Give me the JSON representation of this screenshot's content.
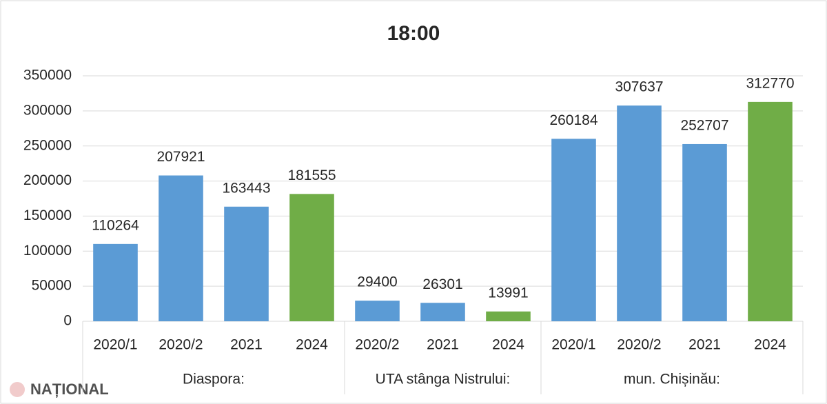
{
  "chart_data": {
    "type": "bar",
    "title": "18:00",
    "groups": [
      {
        "name": "Diaspora:",
        "categories": [
          "2020/1",
          "2020/2",
          "2021",
          "2024"
        ],
        "values": [
          110264,
          207921,
          163443,
          181555
        ],
        "colors": [
          "#5b9bd5",
          "#5b9bd5",
          "#5b9bd5",
          "#70ad47"
        ]
      },
      {
        "name": "UTA stânga Nistrului:",
        "categories": [
          "2020/2",
          "2021",
          "2024"
        ],
        "values": [
          29400,
          26301,
          13991
        ],
        "colors": [
          "#5b9bd5",
          "#5b9bd5",
          "#70ad47"
        ]
      },
      {
        "name": "mun. Chișinău:",
        "categories": [
          "2020/1",
          "2020/2",
          "2021",
          "2024"
        ],
        "values": [
          260184,
          307637,
          252707,
          312770
        ],
        "colors": [
          "#5b9bd5",
          "#5b9bd5",
          "#5b9bd5",
          "#70ad47"
        ]
      }
    ],
    "ylim": [
      0,
      350000
    ],
    "yticks": [
      0,
      50000,
      100000,
      150000,
      200000,
      250000,
      300000,
      350000
    ],
    "grid": true
  },
  "watermark": "NAȚIONAL"
}
